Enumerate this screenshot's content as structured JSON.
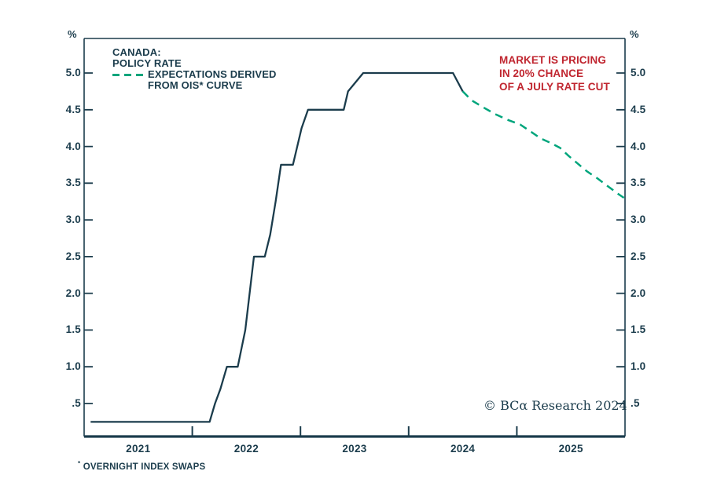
{
  "chart_data": {
    "type": "line",
    "title": "CANADA: POLICY RATE",
    "xlabel": "",
    "ylabel": "%",
    "grid": false,
    "legend_position": "top-left",
    "axis_color": "#1b3c4c",
    "x_range": [
      2021,
      2026
    ],
    "ylim": [
      0,
      5.5
    ],
    "y_ticks": [
      {
        "v": 5.0,
        "label": "5.0"
      },
      {
        "v": 4.5,
        "label": "4.5"
      },
      {
        "v": 4.0,
        "label": "4.0"
      },
      {
        "v": 3.5,
        "label": "3.5"
      },
      {
        "v": 3.0,
        "label": "3.0"
      },
      {
        "v": 2.5,
        "label": "2.5"
      },
      {
        "v": 2.0,
        "label": "2.0"
      },
      {
        "v": 1.5,
        "label": "1.5"
      },
      {
        "v": 1.0,
        "label": "1.0"
      },
      {
        "v": 0.5,
        "label": ".5"
      }
    ],
    "x_ticks": [
      {
        "t": 2021.5,
        "label": "2021"
      },
      {
        "t": 2022.5,
        "label": "2022"
      },
      {
        "t": 2023.5,
        "label": "2023"
      },
      {
        "t": 2024.5,
        "label": "2024"
      },
      {
        "t": 2025.5,
        "label": "2025"
      }
    ],
    "x_boundary_ticks": [
      2022,
      2023,
      2024,
      2025
    ],
    "series": [
      {
        "name": "policy-rate",
        "label": "POLICY RATE",
        "color": "#1b3c4c",
        "width": 2.3,
        "dash": null,
        "points": [
          [
            2021.06,
            0.25
          ],
          [
            2022.16,
            0.25
          ],
          [
            2022.21,
            0.5
          ],
          [
            2022.26,
            0.7
          ],
          [
            2022.32,
            1.0
          ],
          [
            2022.42,
            1.0
          ],
          [
            2022.49,
            1.5
          ],
          [
            2022.57,
            2.5
          ],
          [
            2022.67,
            2.5
          ],
          [
            2022.72,
            2.8
          ],
          [
            2022.77,
            3.25
          ],
          [
            2022.82,
            3.75
          ],
          [
            2022.93,
            3.75
          ],
          [
            2023.01,
            4.25
          ],
          [
            2023.07,
            4.5
          ],
          [
            2023.4,
            4.5
          ],
          [
            2023.44,
            4.75
          ],
          [
            2023.58,
            5.0
          ],
          [
            2024.41,
            5.0
          ],
          [
            2024.5,
            4.75
          ]
        ]
      },
      {
        "name": "ois-expectations",
        "label": "EXPECTATIONS DERIVED FROM OIS* CURVE",
        "color": "#00a57c",
        "width": 2.5,
        "dash": "10 7",
        "points": [
          [
            2024.5,
            4.75
          ],
          [
            2024.58,
            4.63
          ],
          [
            2024.68,
            4.54
          ],
          [
            2024.8,
            4.44
          ],
          [
            2024.92,
            4.36
          ],
          [
            2025.03,
            4.3
          ],
          [
            2025.13,
            4.2
          ],
          [
            2025.22,
            4.11
          ],
          [
            2025.31,
            4.05
          ],
          [
            2025.4,
            3.98
          ],
          [
            2025.48,
            3.87
          ],
          [
            2025.56,
            3.77
          ],
          [
            2025.65,
            3.66
          ],
          [
            2025.75,
            3.56
          ],
          [
            2025.84,
            3.46
          ],
          [
            2025.93,
            3.36
          ],
          [
            2025.99,
            3.3
          ]
        ]
      }
    ]
  },
  "legend": {
    "title_line1": "CANADA:",
    "title_line2": "POLICY RATE",
    "dashed_series_line1": "EXPECTATIONS DERIVED",
    "dashed_series_line2": "FROM OIS* CURVE"
  },
  "annotation": {
    "line1": "MARKET IS PRICING",
    "line2": "IN 20% CHANCE",
    "line3": "OF A JULY RATE CUT",
    "color": "#c0252f"
  },
  "axes": {
    "left_unit": "%",
    "right_unit": "%"
  },
  "footnote": {
    "marker": "*",
    "text": "OVERNIGHT INDEX SWAPS"
  },
  "copyright": "© BCα Research 2024",
  "colors": {
    "text": "#1b3c4c",
    "line": "#1b3c4c",
    "dashed": "#00a57c",
    "annotation": "#c0252f"
  }
}
